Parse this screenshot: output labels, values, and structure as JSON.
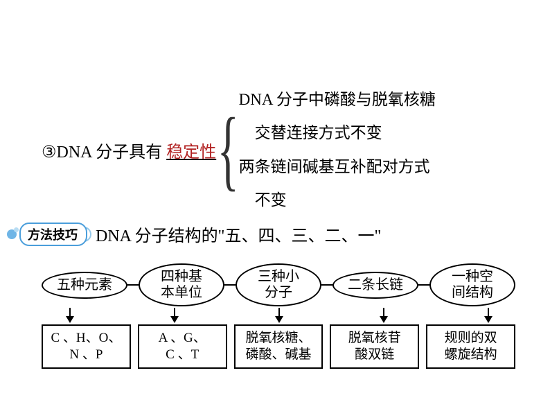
{
  "top": {
    "left_prefix": "③DNA 分子具有",
    "stability": "稳定性",
    "brace_items": [
      "DNA 分子中磷酸与脱氧核糖",
      "　交替连接方式不变",
      "两条链间碱基互补配对方式",
      "　不变"
    ]
  },
  "method": {
    "badge": "方法技巧",
    "title": "DNA 分子结构的\"五、四、三、二、一\""
  },
  "diagram": {
    "ovals": [
      {
        "line1": "五种元素",
        "line2": ""
      },
      {
        "line1": "四种基",
        "line2": "本单位"
      },
      {
        "line1": "三种小",
        "line2": "分子"
      },
      {
        "line1": "二条长链",
        "line2": ""
      },
      {
        "line1": "一种空",
        "line2": "间结构"
      }
    ],
    "boxes": [
      "C 、H、O、\nN 、P",
      "A 、G、\nC 、T",
      "脱氧核糖、\n磷酸、碱基",
      "脱氧核苷\n酸双链",
      "规则的双\n螺旋结构"
    ]
  },
  "colors": {
    "text": "#000000",
    "accent_red": "#b22222",
    "badge_border": "#4a9edb",
    "badge_dot": "#6fb5e6",
    "border": "#000000",
    "background": "#ffffff"
  }
}
